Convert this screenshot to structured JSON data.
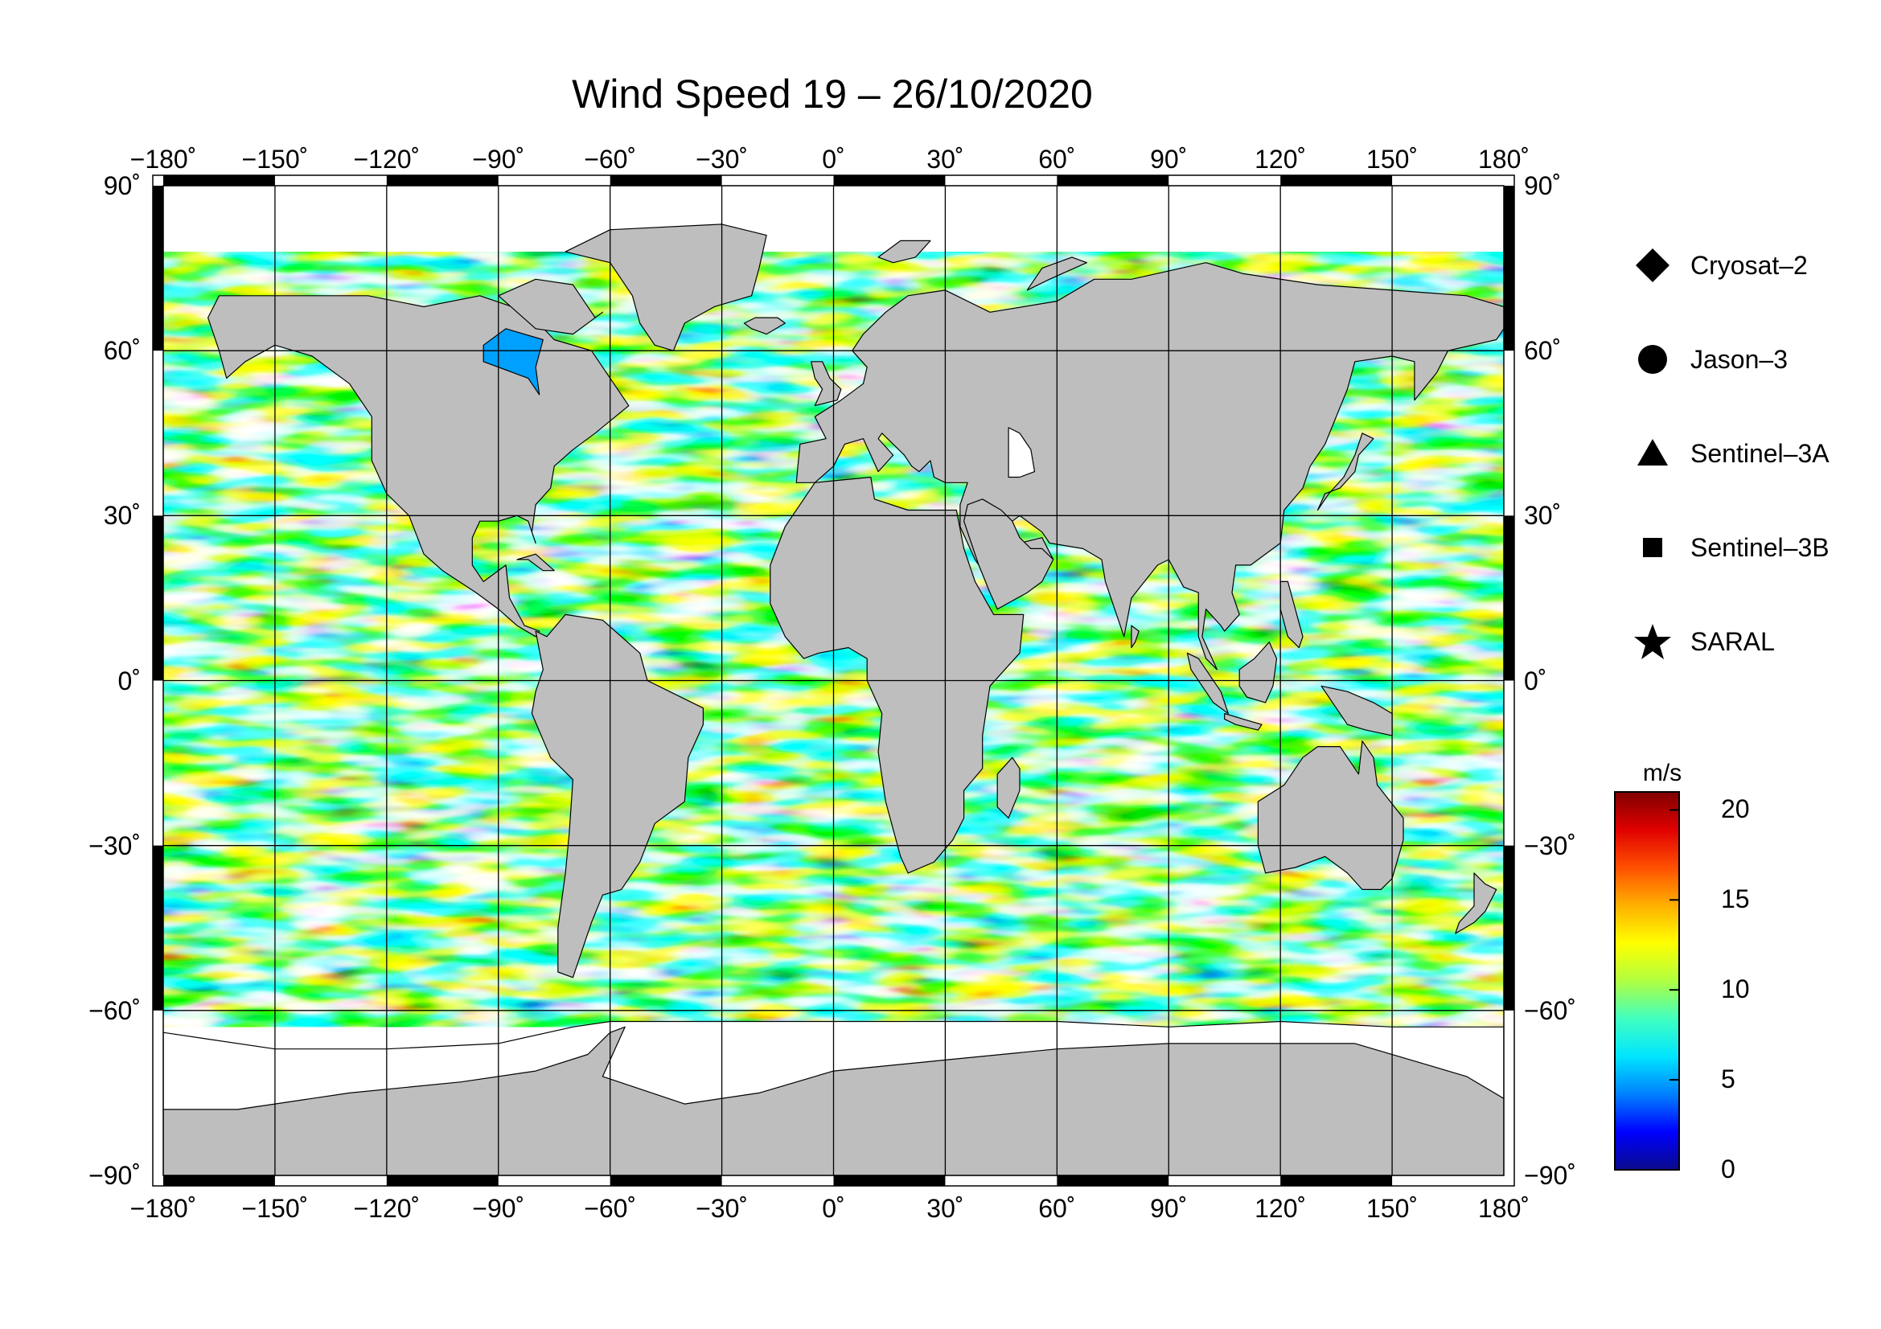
{
  "title": "Wind Speed 19 – 26/10/2020",
  "map": {
    "lon_ticks": [
      "−180˚",
      "−150˚",
      "−120˚",
      "−90˚",
      "−60˚",
      "−30˚",
      "0˚",
      "30˚",
      "60˚",
      "90˚",
      "120˚",
      "150˚",
      "180˚"
    ],
    "lat_ticks": [
      "90˚",
      "60˚",
      "30˚",
      "0˚",
      "−30˚",
      "−60˚",
      "−90˚"
    ],
    "lon_range": [
      -180,
      180
    ],
    "lat_range": [
      -90,
      90
    ],
    "grid": true,
    "land_color": "#bebebe",
    "ice_color": "#ffffff",
    "frame_color": "#000000"
  },
  "legend": {
    "placement": "right",
    "items": [
      {
        "label": "Cryosat–2",
        "icon": "diamond-icon"
      },
      {
        "label": "Jason–3",
        "icon": "circle-icon"
      },
      {
        "label": "Sentinel–3A",
        "icon": "triangle-icon"
      },
      {
        "label": "Sentinel–3B",
        "icon": "square-icon"
      },
      {
        "label": "SARAL",
        "icon": "star-icon"
      }
    ]
  },
  "colorbar": {
    "unit": "m/s",
    "ticks": [
      "20",
      "15",
      "10",
      "5",
      "0"
    ],
    "range": [
      0,
      21
    ],
    "colors": [
      "#0a0a8c",
      "#0000ff",
      "#0080ff",
      "#00e5ff",
      "#40ffc0",
      "#b0ff40",
      "#ffff00",
      "#ffb000",
      "#ff5000",
      "#e00000",
      "#800000"
    ]
  }
}
